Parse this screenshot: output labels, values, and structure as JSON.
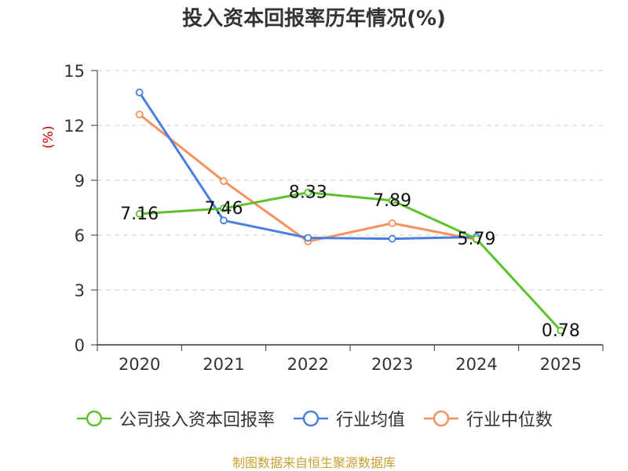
{
  "page": {
    "title": "投入资本回报率历年情况(%)",
    "source": "制图数据来自恒生聚源数据库"
  },
  "colors": {
    "company": "#5ec22c",
    "industry_avg": "#4a7ee0",
    "industry_median": "#f5915e",
    "axis": "#333333",
    "grid": "#cccccc",
    "ylabel": "#cc0000"
  },
  "chart_data": {
    "type": "line",
    "title": "投入资本回报率历年情况(%)",
    "ylabel": "(%)",
    "xlabel": "",
    "categories": [
      "2020",
      "2021",
      "2022",
      "2023",
      "2024",
      "2025"
    ],
    "ylim": [
      0,
      15
    ],
    "yticks": [
      0,
      3,
      6,
      9,
      12,
      15
    ],
    "grid": true,
    "legend_position": "bottom",
    "series": [
      {
        "name": "公司投入资本回报率",
        "key": "company",
        "values": [
          7.16,
          7.46,
          8.33,
          7.89,
          5.79,
          0.78
        ],
        "labels": [
          "7.16",
          "7.46",
          "8.33",
          "7.89",
          "5.79",
          "0.78"
        ]
      },
      {
        "name": "行业均值",
        "key": "industry_avg",
        "values": [
          13.8,
          6.8,
          5.85,
          5.8,
          5.9,
          null
        ]
      },
      {
        "name": "行业中位数",
        "key": "industry_median",
        "values": [
          12.6,
          8.95,
          5.65,
          6.65,
          5.75,
          null
        ]
      }
    ]
  }
}
